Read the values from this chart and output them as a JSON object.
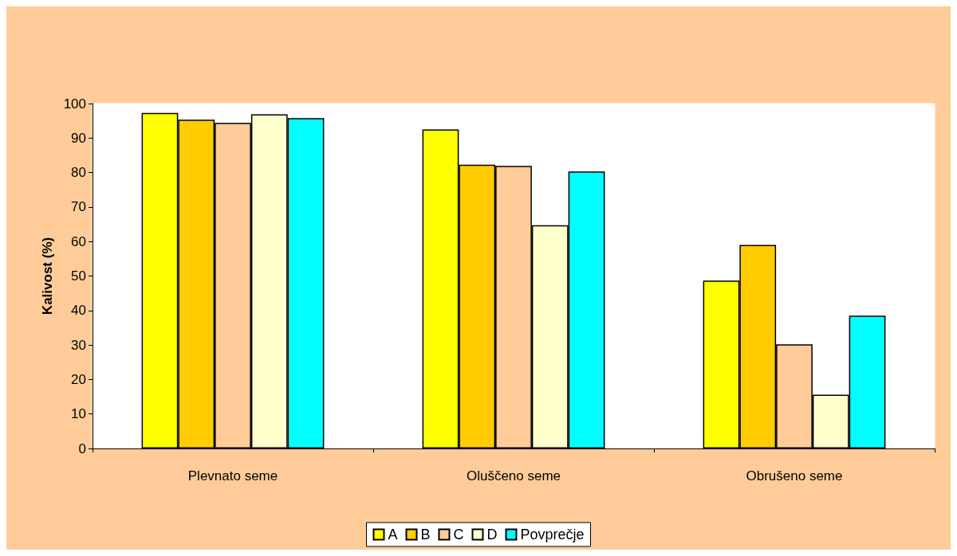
{
  "chart_data": {
    "type": "bar",
    "ylabel": "Kalivost (%)",
    "categories": [
      "Plevnato seme",
      "Oluščeno seme",
      "Obrušeno seme"
    ],
    "series": [
      {
        "name": "A",
        "color": "#ffff00",
        "values": [
          97.3,
          92.5,
          48.7
        ]
      },
      {
        "name": "B",
        "color": "#ffcc00",
        "values": [
          95.3,
          82.3,
          59.0
        ]
      },
      {
        "name": "C",
        "color": "#ffcc99",
        "values": [
          94.4,
          81.9,
          30.2
        ]
      },
      {
        "name": "D",
        "color": "#ffffcc",
        "values": [
          96.9,
          64.7,
          15.6
        ]
      },
      {
        "name": "Povprečje",
        "color": "#00ffff",
        "values": [
          95.8,
          80.3,
          38.5
        ]
      }
    ],
    "ylim": [
      0,
      100
    ],
    "yticks": [
      0,
      10,
      20,
      30,
      40,
      50,
      60,
      70,
      80,
      90,
      100
    ],
    "grid": false,
    "legend": "bottom"
  }
}
